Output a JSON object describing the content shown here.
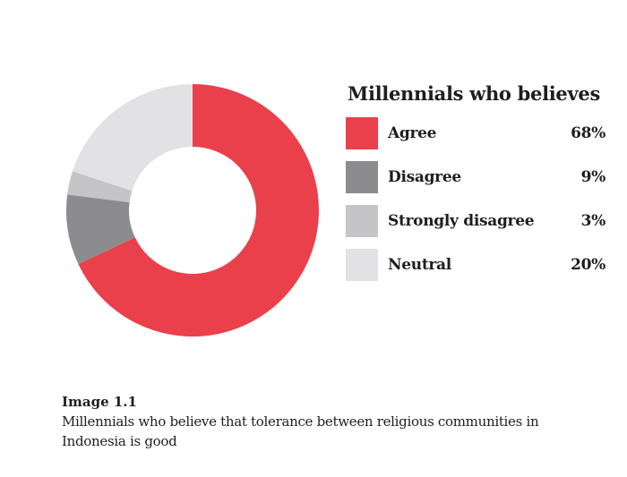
{
  "chart_data": {
    "type": "pie",
    "donut": true,
    "title": "Millennials who believes",
    "series": [
      {
        "name": "Agree",
        "label": "68%",
        "value": 68,
        "color": "#ea404b"
      },
      {
        "name": "Disagree",
        "label": "9%",
        "value": 9,
        "color": "#8c8c8e"
      },
      {
        "name": "Strongly disagree",
        "label": "3%",
        "value": 3,
        "color": "#c5c5c7"
      },
      {
        "name": "Neutral",
        "label": "20%",
        "value": 20,
        "color": "#e2e2e4"
      }
    ],
    "legend_position": "right"
  },
  "caption": {
    "heading": "Image 1.1",
    "text": "Millennials who believe that tolerance between religious communities in Indonesia is good"
  }
}
